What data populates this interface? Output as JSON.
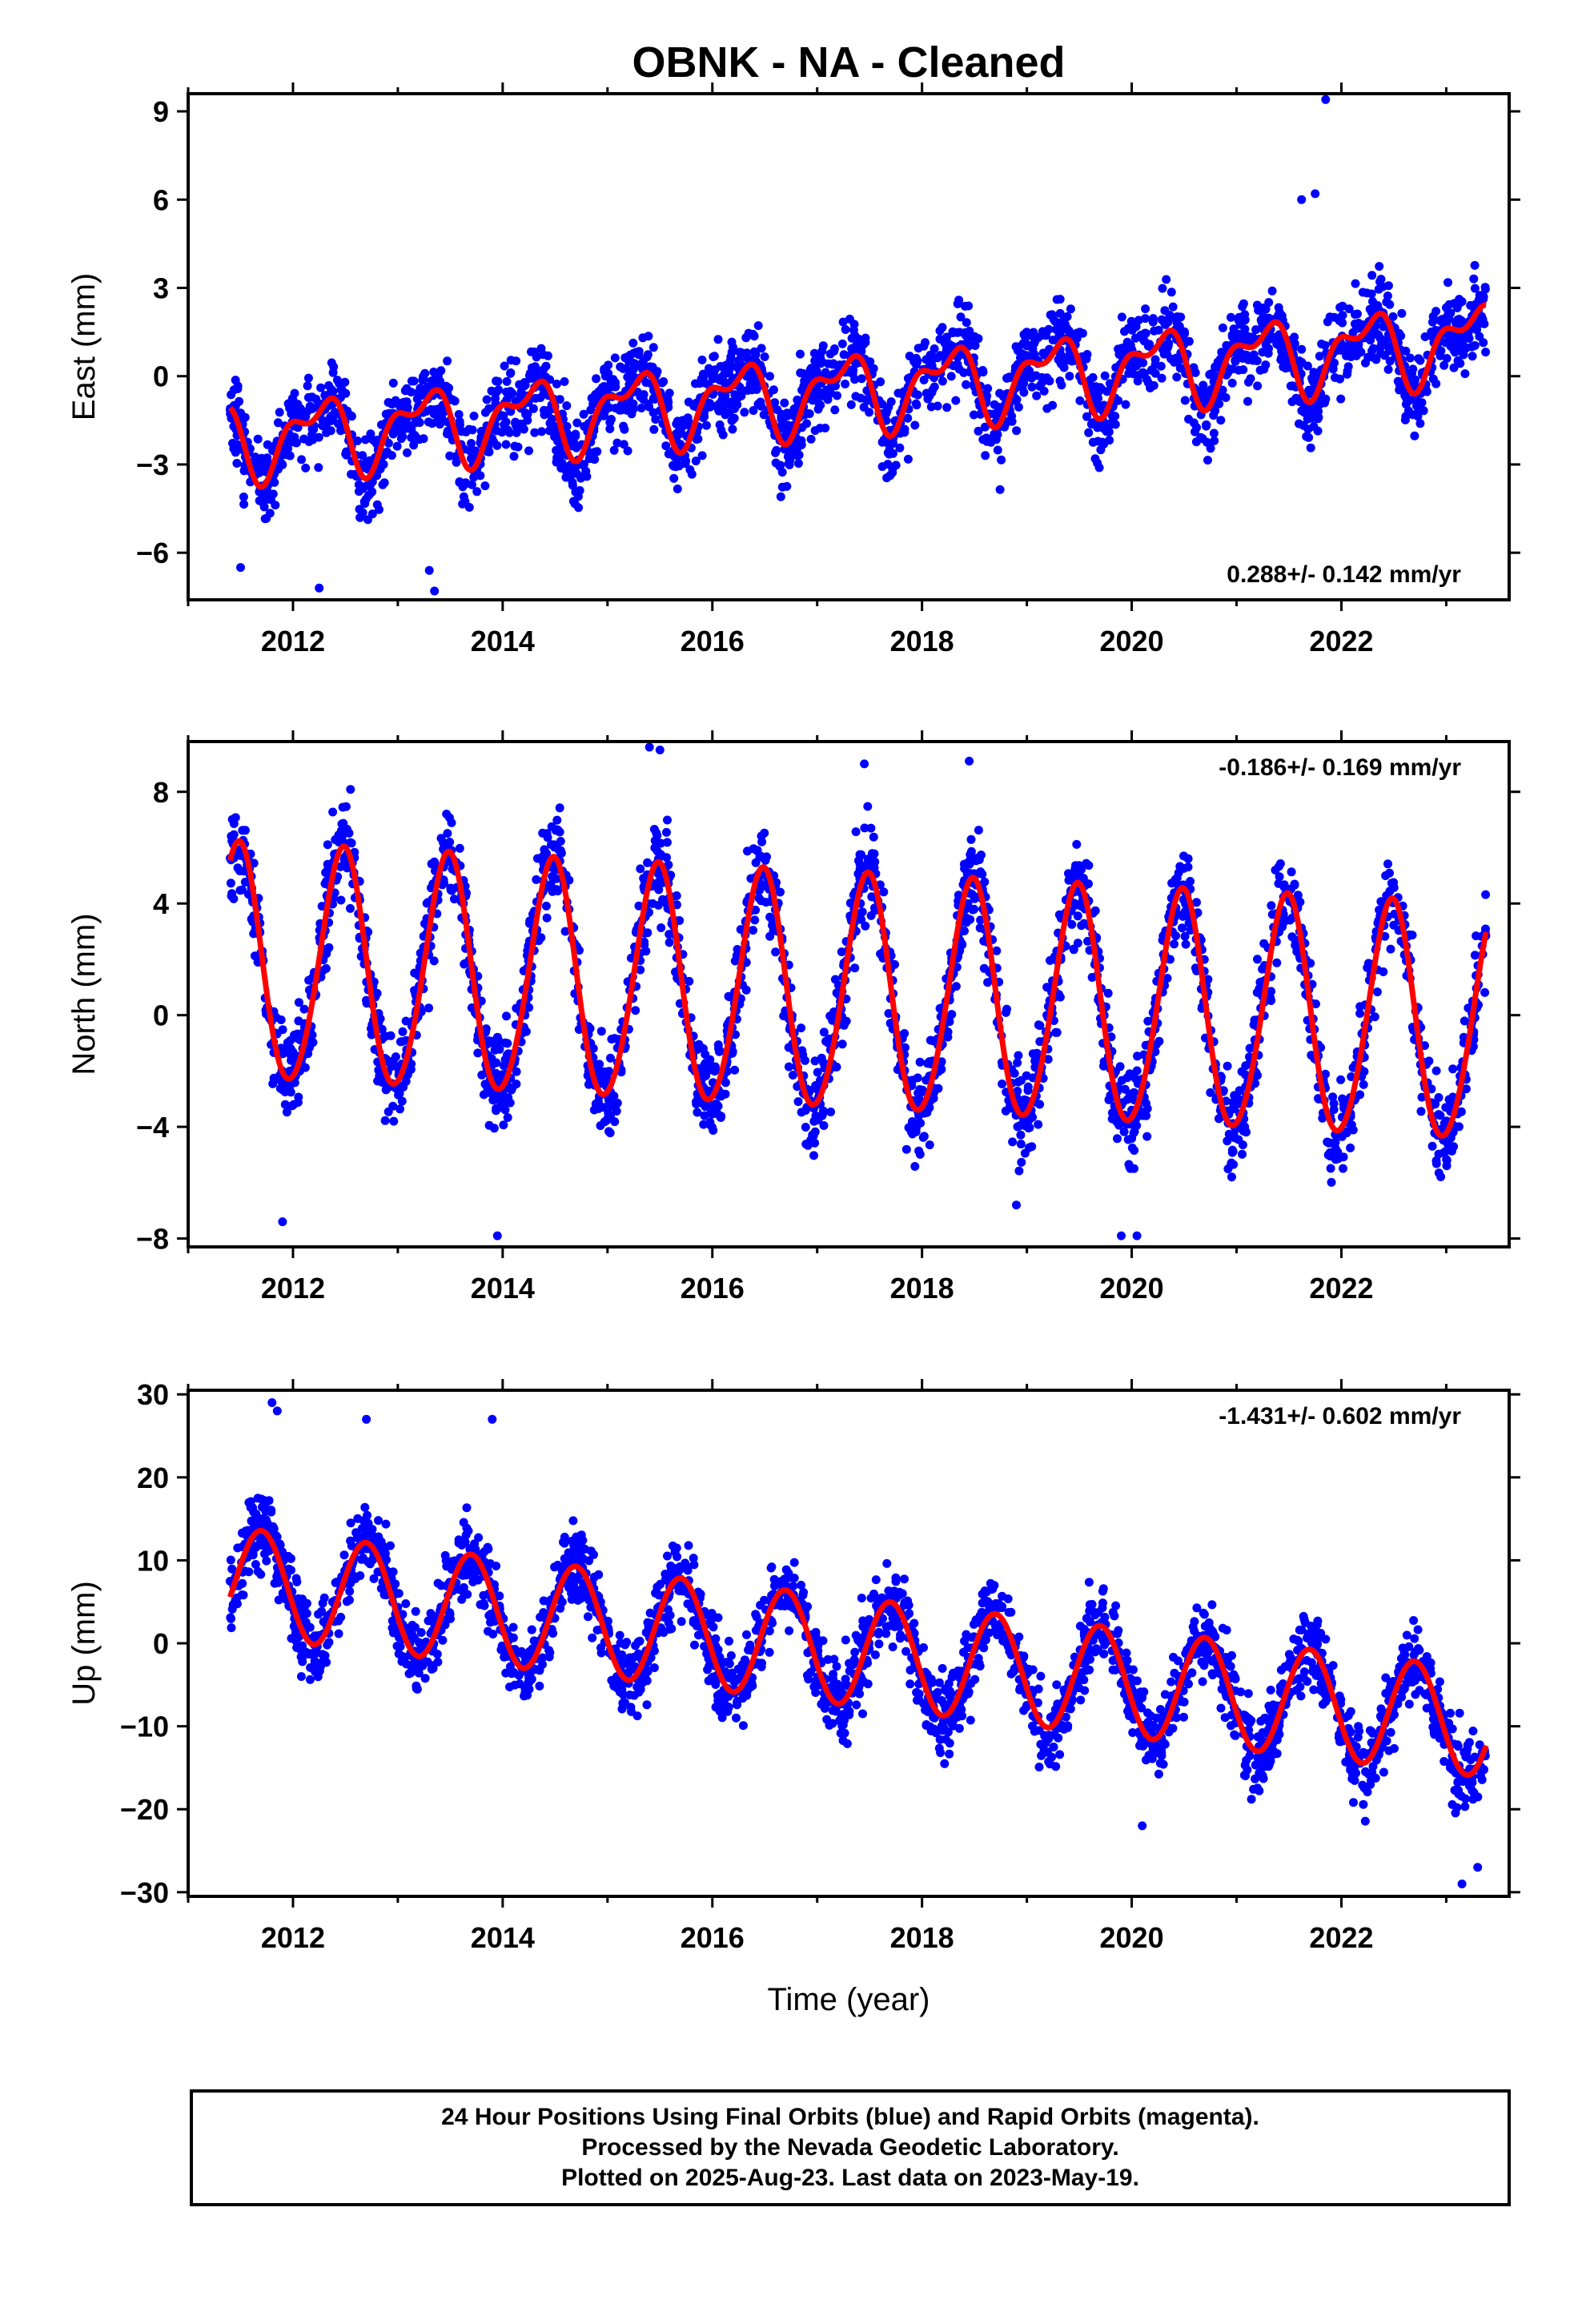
{
  "title": "OBNK  - NA - Cleaned",
  "xlabel": "Time (year)",
  "caption": [
    "24 Hour Positions Using Final Orbits (blue) and Rapid Orbits (magenta).",
    "Processed by the Nevada Geodetic Laboratory.",
    "Plotted on 2025-Aug-23. Last data on 2023-May-19."
  ],
  "colors": {
    "data": "#0000ff",
    "model": "#ff0000",
    "frame": "#000000"
  },
  "chart_data": [
    {
      "type": "scatter",
      "name": "east",
      "ylabel": "East (mm)",
      "rate_label": "0.288+/- 0.142 mm/yr",
      "rate_position": "bottom-right",
      "xlim": [
        2011.0,
        2023.6
      ],
      "ylim": [
        -7.6,
        9.6
      ],
      "xticks": [
        2012,
        2014,
        2016,
        2018,
        2020,
        2022
      ],
      "yticks": [
        -6,
        -3,
        0,
        3,
        6,
        9
      ],
      "data_range": [
        2011.4,
        2023.38
      ],
      "model": {
        "offset": -2.2,
        "rate": 0.288,
        "annual_amp": 1.1,
        "annual_phase": 2.6,
        "semi_amp": 0.6,
        "semi_phase": 1.2
      },
      "scatter_sd": 1.0,
      "outliers": [
        [
          2021.85,
          9.4
        ],
        [
          2021.75,
          6.2
        ],
        [
          2021.62,
          6.0
        ],
        [
          2013.35,
          -7.3
        ],
        [
          2012.25,
          -7.2
        ],
        [
          2013.3,
          -6.6
        ],
        [
          2011.5,
          -6.5
        ]
      ]
    },
    {
      "type": "scatter",
      "name": "north",
      "ylabel": "North (mm)",
      "rate_label": "-0.186+/- 0.169 mm/yr",
      "rate_position": "top-right",
      "xlim": [
        2011.0,
        2023.6
      ],
      "ylim": [
        -8.3,
        9.8
      ],
      "xticks": [
        2012,
        2014,
        2016,
        2018,
        2020,
        2022
      ],
      "yticks": [
        -8,
        -4,
        0,
        4,
        8
      ],
      "data_range": [
        2011.4,
        2023.38
      ],
      "model": {
        "offset": 1.8,
        "rate": -0.186,
        "annual_amp": 4.2,
        "annual_phase": 1.1,
        "semi_amp": 0.3,
        "semi_phase": 0.0,
        "amp_decay": 0.0
      },
      "scatter_sd": 1.2,
      "outliers": [
        [
          2015.4,
          9.6
        ],
        [
          2015.5,
          9.5
        ],
        [
          2017.45,
          9.0
        ],
        [
          2018.45,
          9.1
        ],
        [
          2019.9,
          -7.9
        ],
        [
          2020.05,
          -7.9
        ],
        [
          2013.95,
          -7.9
        ],
        [
          2011.9,
          -7.4
        ],
        [
          2018.9,
          -6.8
        ]
      ]
    },
    {
      "type": "scatter",
      "name": "up",
      "ylabel": "Up (mm)",
      "rate_label": "-1.431+/- 0.602 mm/yr",
      "rate_position": "top-right",
      "xlim": [
        2011.0,
        2023.6
      ],
      "ylim": [
        -30.5,
        30.5
      ],
      "xticks": [
        2012,
        2014,
        2016,
        2018,
        2020,
        2022
      ],
      "yticks": [
        -30,
        -20,
        -10,
        0,
        10,
        20,
        30
      ],
      "data_range": [
        2011.4,
        2023.38
      ],
      "model": {
        "offset": 7.5,
        "rate": -1.431,
        "annual_amp": 6.5,
        "annual_phase": -0.3,
        "semi_amp": 0.0,
        "semi_phase": 0.0
      },
      "scatter_sd": 3.3,
      "outliers": [
        [
          2011.8,
          29.0
        ],
        [
          2011.85,
          28.0
        ],
        [
          2012.7,
          27.0
        ],
        [
          2013.9,
          27.0
        ],
        [
          2023.15,
          -29.0
        ],
        [
          2023.3,
          -27.0
        ],
        [
          2020.1,
          -22.0
        ]
      ]
    }
  ]
}
